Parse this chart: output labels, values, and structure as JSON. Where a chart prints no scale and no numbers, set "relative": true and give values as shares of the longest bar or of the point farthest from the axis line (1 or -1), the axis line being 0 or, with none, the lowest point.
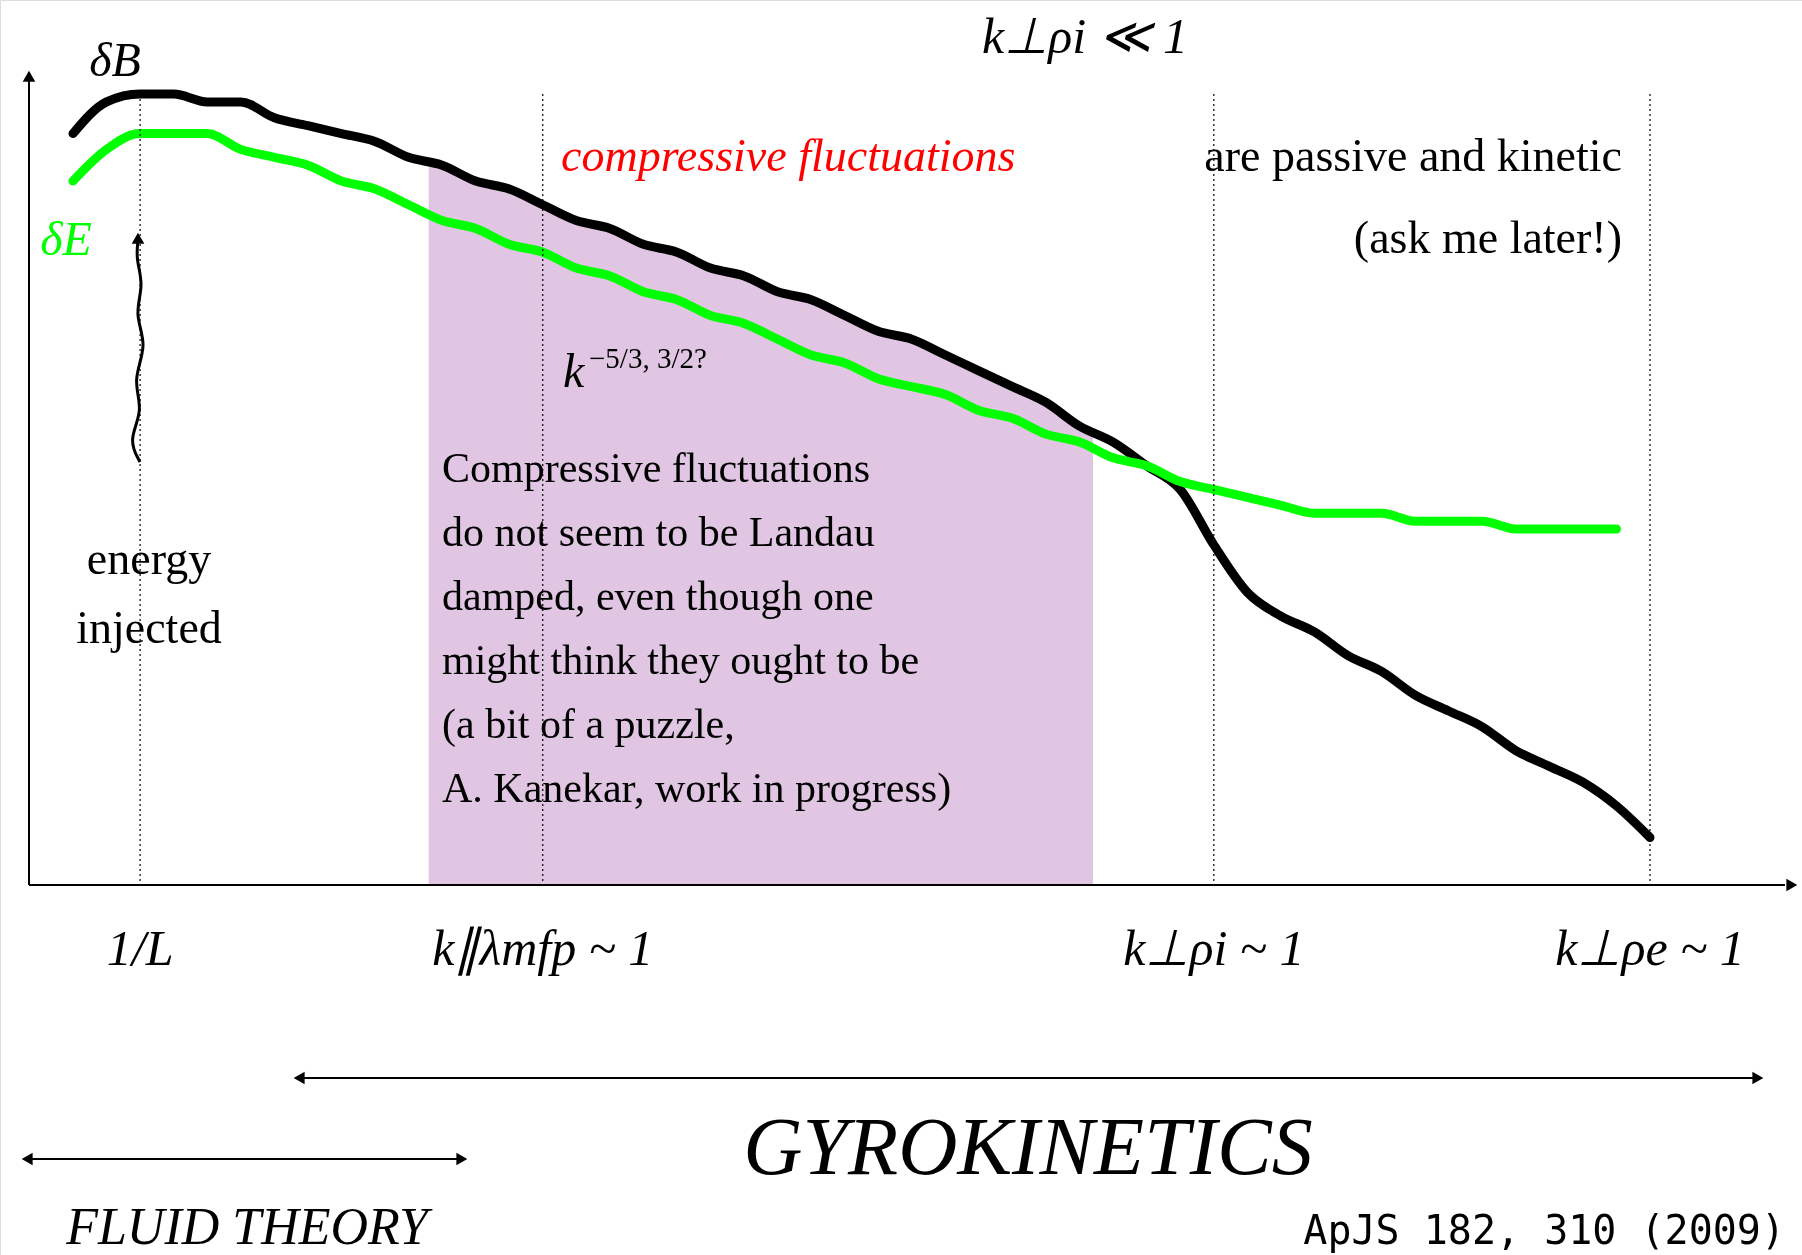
{
  "chart_data": {
    "type": "line",
    "relative": true,
    "title": "k⊥ρi ≪ 1",
    "categories": [
      null,
      null,
      "1/L",
      null,
      null,
      null,
      null,
      null,
      null,
      null,
      null,
      null,
      null,
      null,
      "k∥λmfp ~ 1",
      null,
      null,
      null,
      null,
      null,
      null,
      null,
      null,
      null,
      null,
      null,
      null,
      null,
      null,
      null,
      null,
      null,
      null,
      null,
      "k⊥ρi ~ 1",
      null,
      null,
      null,
      null,
      null,
      null,
      null,
      null,
      null,
      null,
      null,
      null,
      "k⊥ρe ~ 1"
    ],
    "series": [
      {
        "name": "δB",
        "color": "#000000",
        "values": [
          0.95,
          0.99,
          1.0,
          1.0,
          0.99,
          0.99,
          0.97,
          0.96,
          0.95,
          0.94,
          0.92,
          0.91,
          0.89,
          0.88,
          0.86,
          0.84,
          0.83,
          0.81,
          0.8,
          0.78,
          0.77,
          0.75,
          0.74,
          0.72,
          0.7,
          0.69,
          0.67,
          0.65,
          0.63,
          0.61,
          0.58,
          0.56,
          0.53,
          0.5,
          0.43,
          0.37,
          0.34,
          0.32,
          0.29,
          0.27,
          0.24,
          0.22,
          0.2,
          0.17,
          0.15,
          0.13,
          0.1,
          0.06
        ]
      },
      {
        "name": "δE",
        "color": "#00ff00",
        "values": [
          0.89,
          0.93,
          0.95,
          0.95,
          0.95,
          0.93,
          0.92,
          0.91,
          0.89,
          0.88,
          0.86,
          0.84,
          0.83,
          0.81,
          0.8,
          0.78,
          0.77,
          0.75,
          0.74,
          0.72,
          0.71,
          0.69,
          0.67,
          0.66,
          0.64,
          0.63,
          0.62,
          0.6,
          0.59,
          0.57,
          0.56,
          0.54,
          0.53,
          0.51,
          0.5,
          0.49,
          0.48,
          0.47,
          0.47,
          0.47,
          0.46,
          0.46,
          0.46,
          0.45,
          0.45,
          0.45,
          0.45,
          null
        ]
      }
    ],
    "ref_lines": [
      {
        "axis": "x",
        "value": "1/L",
        "line_style": "dotted"
      },
      {
        "axis": "x",
        "value": "k∥λmfp ~ 1",
        "line_style": "dotted"
      },
      {
        "axis": "x",
        "value": "k⊥ρi ~ 1",
        "line_style": "dotted"
      },
      {
        "axis": "x",
        "value": "k⊥ρe ~ 1",
        "line_style": "dotted"
      }
    ],
    "annotations": [
      "compressive fluctuations",
      "are passive and kinetic",
      "(ask me later!)",
      "k$^{−5/3, 3/2?}$",
      "Compressive fluctuations\ndo not seem to be Landau\ndamped, even though one\nmight think they ought to be\n(a bit of a puzzle,\nA. Kanekar, work in progress)",
      "energy\ninjected",
      "GYROKINETICS",
      "FLUID THEORY",
      "ApJS 182, 310 (2009)"
    ]
  }
}
